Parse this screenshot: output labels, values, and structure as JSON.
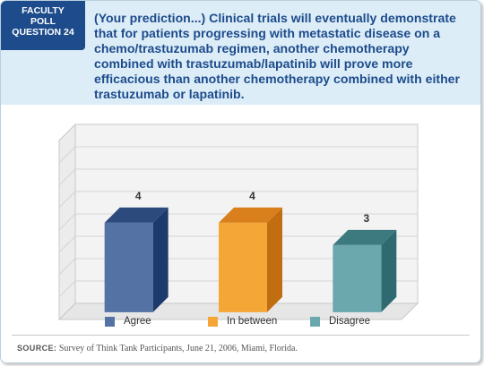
{
  "badge": {
    "line1": "FACULTY",
    "line2": "POLL",
    "line3": "QUESTION 24"
  },
  "question": "(Your prediction...) Clinical trials will eventually demonstrate that for patients progressing with metastatic disease on a chemo/trastuzumab regimen, another chemotherapy combined with trastuzumab/lapatinib will prove more efficacious than another chemotherapy combined with either trastuzumab or lapatinib.",
  "chart_data": {
    "type": "bar",
    "categories": [
      "Agree",
      "In between",
      "Disagree"
    ],
    "values": [
      4,
      4,
      3
    ],
    "ylim": [
      0,
      8
    ],
    "grid": true,
    "legend_placement": "bottom",
    "colors": [
      "#5472a3",
      "#f4a637",
      "#6aa8ae"
    ],
    "top_colors": [
      "#2c4a7c",
      "#d9801c",
      "#3d7a80"
    ],
    "side_colors": [
      "#1d3a6c",
      "#c06e10",
      "#2e6a70"
    ]
  },
  "source": {
    "prefix": "SOURCE:",
    "text": "Survey of Think Tank Participants, June 21, 2006, Miami, Florida."
  }
}
